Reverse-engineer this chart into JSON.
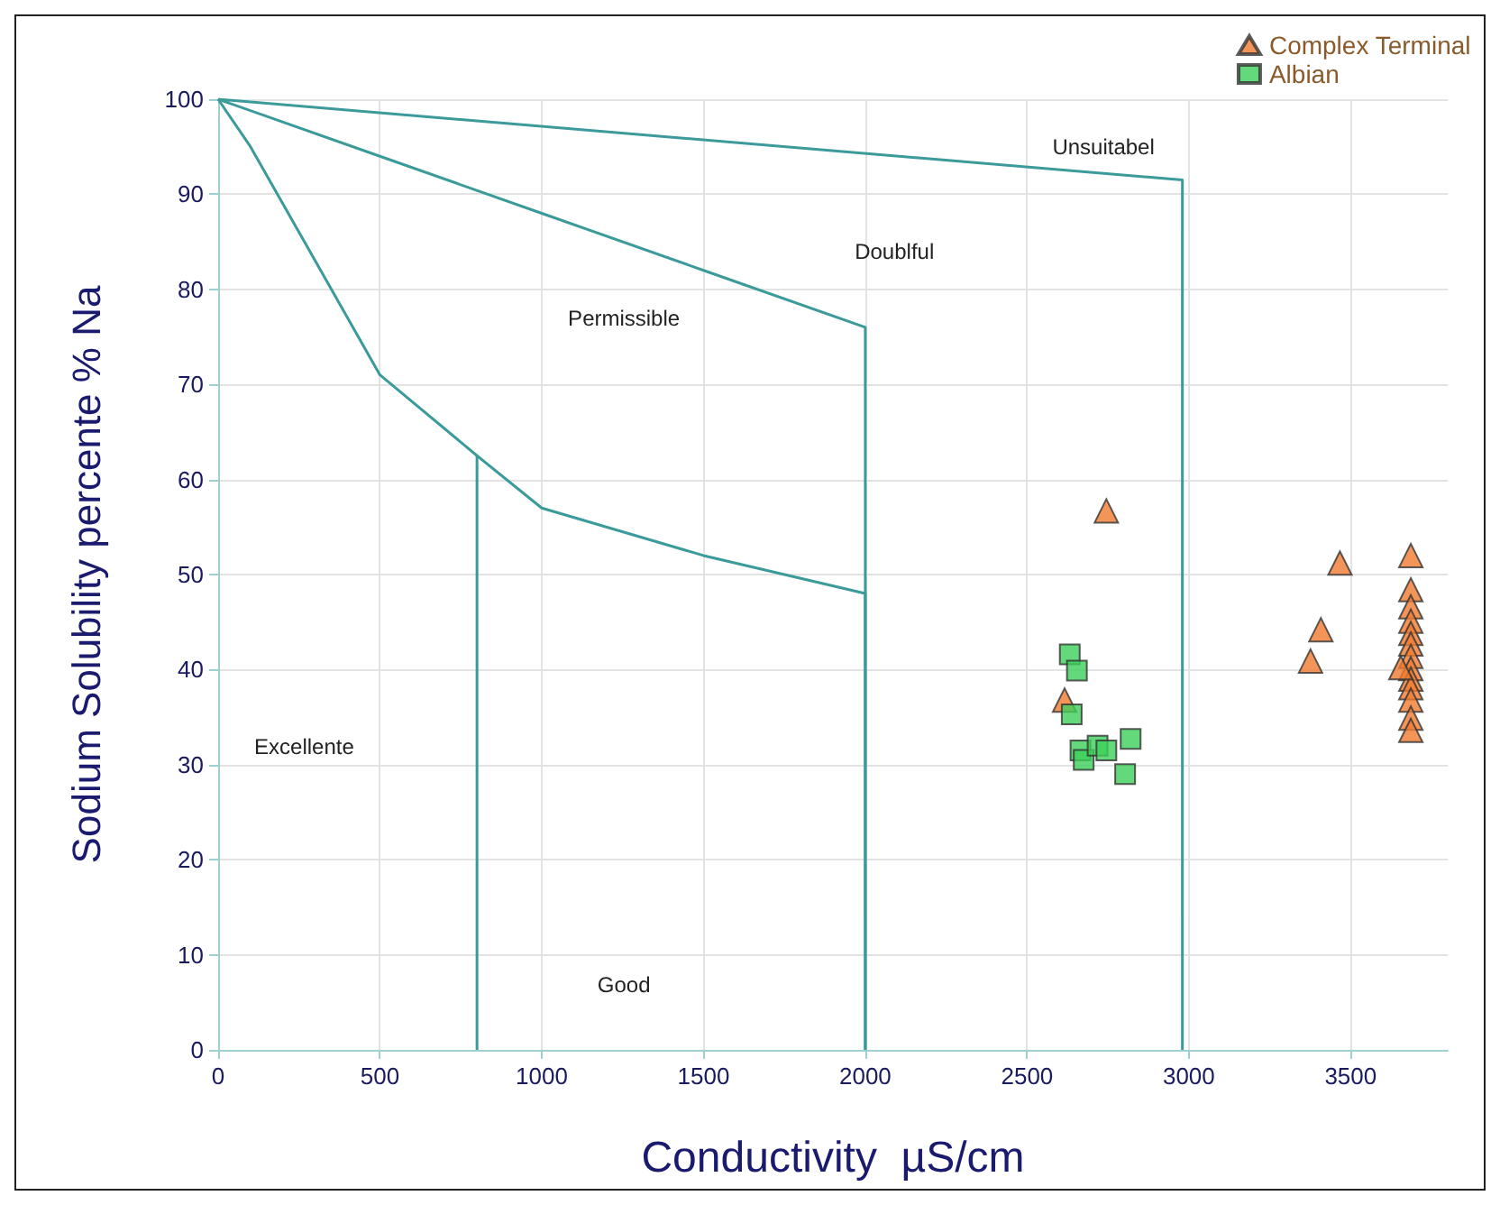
{
  "chart_data": {
    "type": "scatter",
    "xlabel": "Conductivity  µS/cm",
    "ylabel": "Sodium Solubility percente % Na",
    "xlim": [
      0,
      3800
    ],
    "xticks": [
      0,
      500,
      1000,
      1500,
      2000,
      2500,
      3000,
      3500
    ],
    "ylim": [
      0,
      100
    ],
    "yticks": [
      0,
      10,
      20,
      30,
      40,
      50,
      60,
      70,
      80,
      90,
      100
    ],
    "grid": true,
    "legend": "top right",
    "series": [
      {
        "name": "Complex Terminal",
        "marker": "triangle",
        "color": "#f07a30",
        "x": [
          2745,
          3467,
          3408,
          3376,
          2616,
          3686,
          3686,
          3686,
          3686,
          3686,
          3686,
          3686,
          3686,
          3686,
          3686,
          3686,
          3686,
          3686,
          3655
        ],
        "values": [
          56.7,
          51.2,
          44.2,
          40.9,
          36.8,
          52,
          48.4,
          46.6,
          45.1,
          43.8,
          42.7,
          41.4,
          40.1,
          39,
          38.1,
          36.8,
          34.9,
          33.6,
          40.2
        ]
      },
      {
        "name": "Albian",
        "marker": "square",
        "color": "#3ccf5a",
        "x": [
          2632,
          2654,
          2638,
          2665,
          2675,
          2718,
          2745,
          2820,
          2803
        ],
        "values": [
          41.6,
          39.9,
          35.3,
          31.5,
          30.5,
          32,
          31.5,
          32.7,
          29
        ]
      },
      {
        "type": "line",
        "marker": "none",
        "color": "#3b9a9a",
        "x": [
          0,
          2980,
          2980
        ],
        "values": [
          100,
          91.5,
          0
        ]
      },
      {
        "type": "line",
        "marker": "none",
        "color": "#3b9a9a",
        "x": [
          0,
          500,
          1000,
          1500,
          2000,
          2000
        ],
        "values": [
          100,
          94,
          88,
          82,
          76,
          0
        ]
      },
      {
        "type": "line",
        "marker": "none",
        "color": "#3b9a9a",
        "x": [
          0,
          100,
          250,
          500,
          800,
          1000,
          1500,
          2000,
          2000
        ],
        "values": [
          100,
          95,
          86,
          71,
          62.5,
          57,
          52,
          48,
          0
        ]
      },
      {
        "type": "line",
        "marker": "none",
        "color": "#3b9a9a",
        "x": [
          800,
          800
        ],
        "values": [
          62.5,
          0
        ]
      }
    ],
    "annotations": [
      "Unsuitabel",
      "Doublful",
      "Permissible",
      "Excellente",
      "Good"
    ]
  }
}
